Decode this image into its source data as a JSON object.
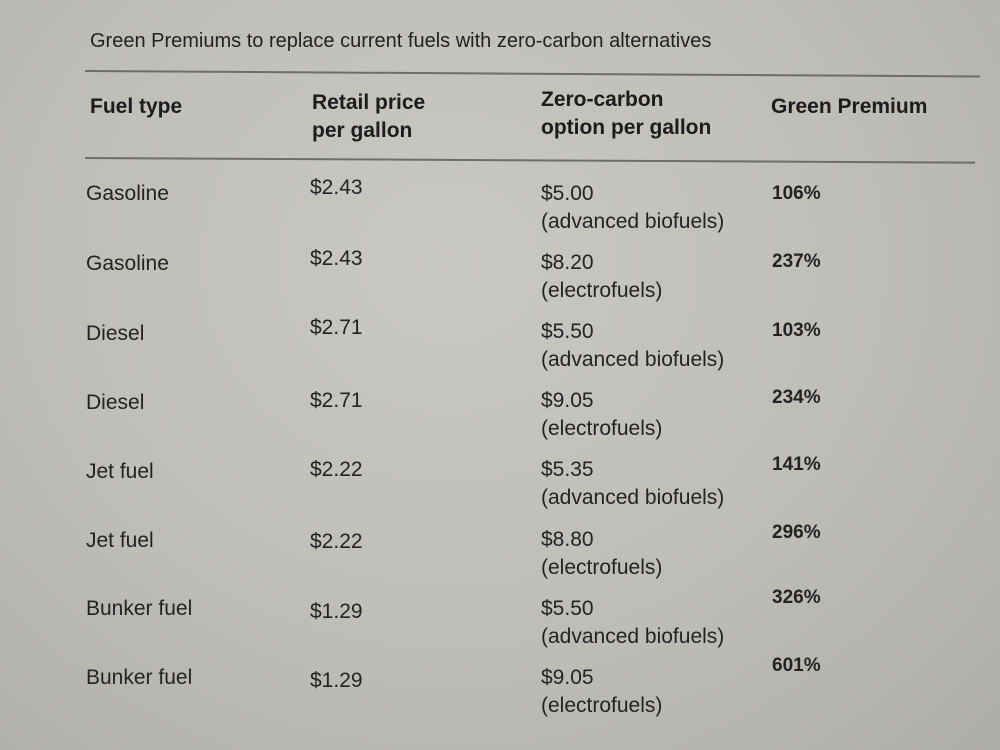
{
  "title": "Green Premiums to replace current fuels with zero-carbon alternatives",
  "headers": {
    "fuel_type": "Fuel type",
    "retail_line1": "Retail price",
    "retail_line2": "per gallon",
    "zero_line1": "Zero-carbon",
    "zero_line2": "option per gallon",
    "premium": "Green Premium"
  },
  "rows": [
    {
      "fuel": "Gasoline",
      "retail": "$2.43",
      "zero_price": "$5.00",
      "zero_type": "(advanced biofuels)",
      "premium": "106%"
    },
    {
      "fuel": "Gasoline",
      "retail": "$2.43",
      "zero_price": "$8.20",
      "zero_type": "(electrofuels)",
      "premium": "237%"
    },
    {
      "fuel": "Diesel",
      "retail": "$2.71",
      "zero_price": "$5.50",
      "zero_type": "(advanced biofuels)",
      "premium": "103%"
    },
    {
      "fuel": "Diesel",
      "retail": "$2.71",
      "zero_price": "$9.05",
      "zero_type": "(electrofuels)",
      "premium": "234%"
    },
    {
      "fuel": "Jet fuel",
      "retail": "$2.22",
      "zero_price": "$5.35",
      "zero_type": "(advanced biofuels)",
      "premium": "141%"
    },
    {
      "fuel": "Jet fuel",
      "retail": "$2.22",
      "zero_price": "$8.80",
      "zero_type": "(electrofuels)",
      "premium": "296%"
    },
    {
      "fuel": "Bunker fuel",
      "retail": "$1.29",
      "zero_price": "$5.50",
      "zero_type": "(advanced biofuels)",
      "premium": "326%"
    },
    {
      "fuel": "Bunker fuel",
      "retail": "$1.29",
      "zero_price": "$9.05",
      "zero_type": "(electrofuels)",
      "premium": "601%"
    }
  ]
}
